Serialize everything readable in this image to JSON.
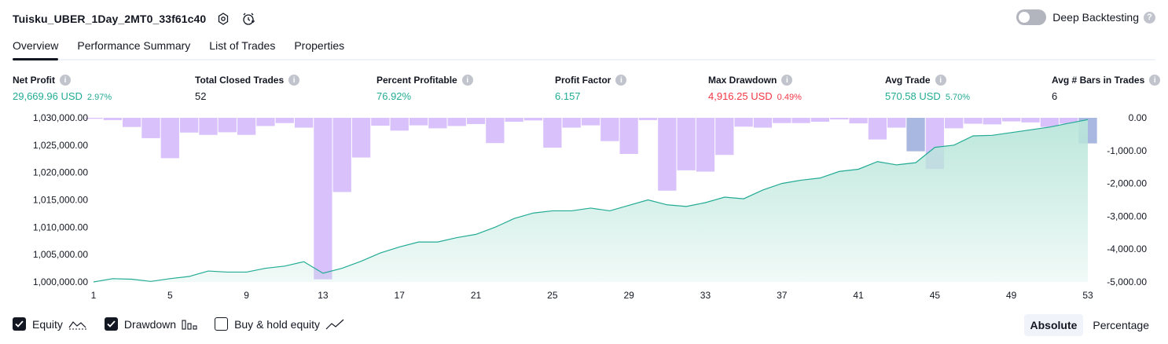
{
  "header": {
    "title": "Tuisku_UBER_1Day_2MT0_33f61c40",
    "deep_backtesting_label": "Deep Backtesting"
  },
  "tabs": [
    {
      "label": "Overview",
      "active": true
    },
    {
      "label": "Performance Summary",
      "active": false
    },
    {
      "label": "List of Trades",
      "active": false
    },
    {
      "label": "Properties",
      "active": false
    }
  ],
  "metrics": {
    "net_profit": {
      "label": "Net Profit",
      "value": "29,669.96 USD",
      "pct": "2.97%"
    },
    "total_closed_trades": {
      "label": "Total Closed Trades",
      "value": "52"
    },
    "percent_profitable": {
      "label": "Percent Profitable",
      "value": "76.92%"
    },
    "profit_factor": {
      "label": "Profit Factor",
      "value": "6.157"
    },
    "max_drawdown": {
      "label": "Max Drawdown",
      "value": "4,916.25 USD",
      "pct": "0.49%"
    },
    "avg_trade": {
      "label": "Avg Trade",
      "value": "570.58 USD",
      "pct": "5.70%"
    },
    "avg_bars": {
      "label": "Avg # Bars in Trades",
      "value": "6"
    }
  },
  "colors": {
    "profit": "#22ab94",
    "loss": "#f23645",
    "equity_line": "#22ab94",
    "equity_fill": "#b9e6da",
    "drawdown_bar": "#d9c2fb",
    "drawdown_highlight": "#a9b8e0"
  },
  "chart_data": {
    "type": "line+bar",
    "x_ticks": [
      "1",
      "5",
      "9",
      "13",
      "17",
      "21",
      "25",
      "29",
      "33",
      "37",
      "41",
      "45",
      "49",
      "53"
    ],
    "xlim": [
      1,
      53
    ],
    "equity_axis": {
      "ticks": [
        "1,030,000.00",
        "1,025,000.00",
        "1,020,000.00",
        "1,015,000.00",
        "1,010,000.00",
        "1,005,000.00",
        "1,000,000.00"
      ],
      "ylim": [
        1000000,
        1030000
      ]
    },
    "drawdown_axis": {
      "ticks": [
        "0.00",
        "-1,000.00",
        "-2,000.00",
        "-3,000.00",
        "-4,000.00",
        "-5,000.00"
      ],
      "ylim": [
        -5000,
        0
      ]
    },
    "series": [
      {
        "name": "Equity",
        "x": [
          1,
          2,
          3,
          4,
          5,
          6,
          7,
          8,
          9,
          10,
          11,
          12,
          13,
          14,
          15,
          16,
          17,
          18,
          19,
          20,
          21,
          22,
          23,
          24,
          25,
          26,
          27,
          28,
          29,
          30,
          31,
          32,
          33,
          34,
          35,
          36,
          37,
          38,
          39,
          40,
          41,
          42,
          43,
          44,
          45,
          46,
          47,
          48,
          49,
          50,
          51,
          52,
          53
        ],
        "values": [
          1000000,
          1000600,
          1000500,
          1000100,
          1000600,
          1001000,
          1002000,
          1001800,
          1001800,
          1002500,
          1002900,
          1003700,
          1001600,
          1002500,
          1003800,
          1005300,
          1006400,
          1007300,
          1007300,
          1008100,
          1008700,
          1010000,
          1011600,
          1012600,
          1013000,
          1013000,
          1013500,
          1013000,
          1014000,
          1015000,
          1014100,
          1013800,
          1014500,
          1015500,
          1015200,
          1016800,
          1018000,
          1018600,
          1019000,
          1020200,
          1020600,
          1022000,
          1021400,
          1021800,
          1024600,
          1025000,
          1026700,
          1026800,
          1027300,
          1027800,
          1028300,
          1029000,
          1029670
        ]
      },
      {
        "name": "Drawdown",
        "x": [
          1,
          2,
          3,
          4,
          5,
          6,
          7,
          8,
          9,
          10,
          11,
          12,
          13,
          14,
          15,
          16,
          17,
          18,
          19,
          20,
          21,
          22,
          23,
          24,
          25,
          26,
          27,
          28,
          29,
          30,
          31,
          32,
          33,
          34,
          35,
          36,
          37,
          38,
          39,
          40,
          41,
          42,
          43,
          44,
          45,
          46,
          47,
          48,
          49,
          50,
          51,
          52,
          53
        ],
        "values": [
          -30,
          -70,
          -280,
          -620,
          -1230,
          -450,
          -520,
          -440,
          -520,
          -250,
          -160,
          -300,
          -4920,
          -2260,
          -1210,
          -240,
          -390,
          -230,
          -320,
          -250,
          -190,
          -770,
          -120,
          -80,
          -910,
          -300,
          -230,
          -710,
          -1100,
          -70,
          -2220,
          -1600,
          -1640,
          -1130,
          -270,
          -300,
          -160,
          -160,
          -120,
          -50,
          -170,
          -660,
          -300,
          -1020,
          -1560,
          -320,
          -180,
          -200,
          -110,
          -140,
          -280,
          -180,
          -780
        ]
      }
    ],
    "highlight_drawdown_indices": [
      44,
      53
    ]
  },
  "legend": {
    "equity": "Equity",
    "drawdown": "Drawdown",
    "buy_hold": "Buy & hold equity"
  },
  "modes": {
    "absolute": "Absolute",
    "percentage": "Percentage"
  }
}
